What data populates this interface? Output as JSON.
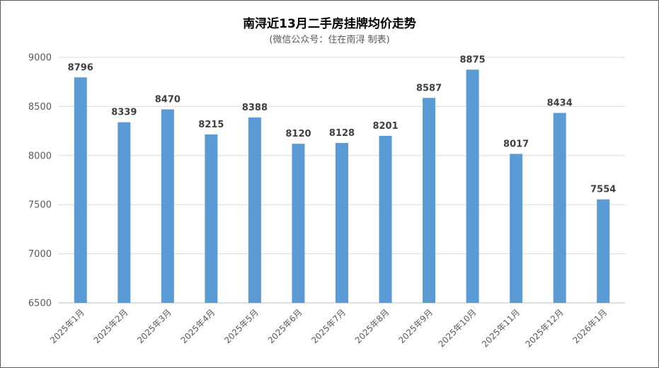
{
  "chart_data": {
    "type": "bar",
    "title": "南浔近13月二手房挂牌均价走势",
    "subtitle": "(微信公众号：住在南浔 制表)",
    "categories": [
      "2025年1月",
      "2025年2月",
      "2025年3月",
      "2025年4月",
      "2025年5月",
      "2025年6月",
      "2025年7月",
      "2025年8月",
      "2025年9月",
      "2025年10月",
      "2025年11月",
      "2025年12月",
      "2026年1月"
    ],
    "values": [
      8796,
      8339,
      8470,
      8215,
      8388,
      8120,
      8128,
      8201,
      8587,
      8875,
      8017,
      8434,
      7554
    ],
    "ylim": [
      6500,
      9000
    ],
    "yticks": [
      6500,
      7000,
      7500,
      8000,
      8500,
      9000
    ],
    "grid": true,
    "bar_color": "#5b9bd5",
    "data_labels": true
  }
}
